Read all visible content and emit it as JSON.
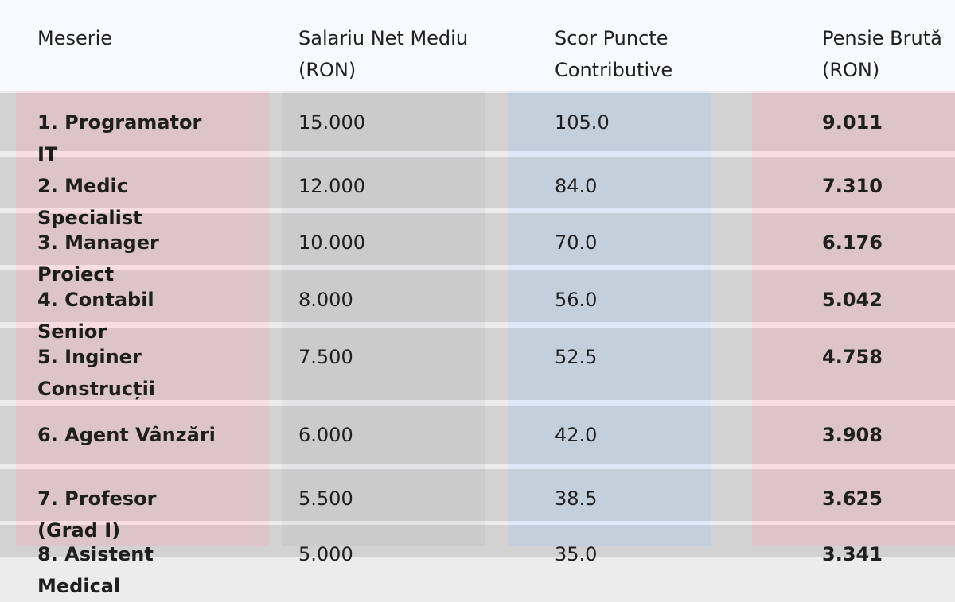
{
  "table": {
    "headers": [
      "Meserie",
      "Salariu Net Mediu (RON)",
      "Scor Puncte Contributive",
      "Pensie Brută (RON)"
    ],
    "rows": [
      [
        "1. Programator IT",
        "15.000",
        "105.0",
        "9.011"
      ],
      [
        "2. Medic Specialist",
        "12.000",
        "84.0",
        "7.310"
      ],
      [
        "3. Manager Proiect",
        "10.000",
        "70.0",
        "6.176"
      ],
      [
        "4. Contabil Senior",
        "8.000",
        "56.0",
        "5.042"
      ],
      [
        "5. Inginer Construcții",
        "7.500",
        "52.5",
        "4.758"
      ],
      [
        "6. Agent Vânzări",
        "6.000",
        "42.0",
        "3.908"
      ],
      [
        "7. Profesor (Grad I)",
        "5.500",
        "38.5",
        "3.625"
      ],
      [
        "8. Asistent Medical",
        "5.000",
        "35.0",
        "3.341"
      ]
    ]
  }
}
